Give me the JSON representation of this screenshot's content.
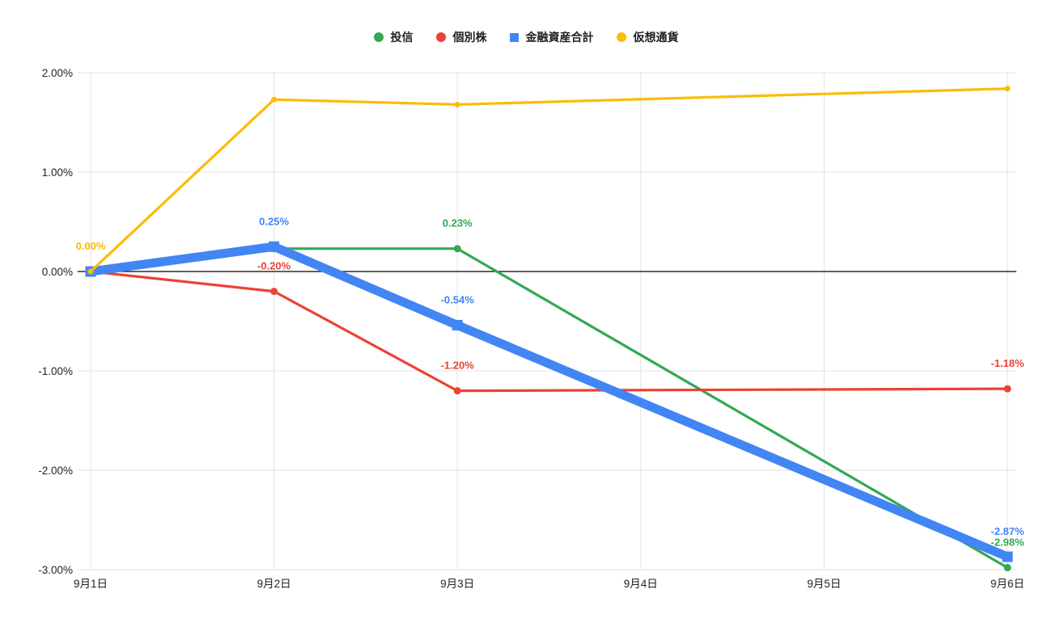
{
  "chart_data": {
    "type": "line",
    "title": "",
    "xlabel": "",
    "ylabel": "",
    "x_categories": [
      "9月1日",
      "9月2日",
      "9月3日",
      "9月4日",
      "9月5日",
      "9月6日"
    ],
    "y_ticks": [
      {
        "value": 2,
        "label": "2.00%"
      },
      {
        "value": 1,
        "label": "1.00%"
      },
      {
        "value": 0,
        "label": "0.00%"
      },
      {
        "value": -1,
        "label": "-1.00%"
      },
      {
        "value": -2,
        "label": "-2.00%"
      },
      {
        "value": -3,
        "label": "-3.00%"
      }
    ],
    "ylim": [
      -3,
      2
    ],
    "grid": true,
    "legend_position": "top",
    "axis": {
      "grid_color": "#e3e3e3",
      "zero_line_color": "#000000",
      "tick_label_color": "#222222"
    },
    "series": [
      {
        "name": "投信",
        "color": "#34a853",
        "marker": "circle",
        "marker_size": 9,
        "line_width": 3.2,
        "values": [
          0.0,
          0.23,
          0.23,
          null,
          null,
          -2.98
        ],
        "point_labels": [
          null,
          null,
          "0.23%",
          null,
          null,
          "-2.98%"
        ]
      },
      {
        "name": "個別株",
        "color": "#ea4335",
        "marker": "circle",
        "marker_size": 9,
        "line_width": 3.2,
        "values": [
          0.0,
          -0.2,
          -1.2,
          null,
          null,
          -1.18
        ],
        "point_labels": [
          null,
          "-0.20%",
          "-1.20%",
          null,
          null,
          "-1.18%"
        ]
      },
      {
        "name": "金融資産合計",
        "color": "#4285f4",
        "marker": "square",
        "marker_size": 13,
        "line_width": 11,
        "values": [
          0.0,
          0.25,
          -0.54,
          null,
          null,
          -2.87
        ],
        "point_labels": [
          null,
          "0.25%",
          "-0.54%",
          null,
          null,
          "-2.87%"
        ]
      },
      {
        "name": "仮想通貨",
        "color": "#fbbc04",
        "marker": "circle",
        "marker_size": 7,
        "line_width": 3.2,
        "values": [
          0.0,
          1.73,
          1.68,
          null,
          null,
          1.84
        ],
        "point_labels": [
          "0.00%",
          null,
          null,
          null,
          null,
          null
        ]
      }
    ]
  }
}
